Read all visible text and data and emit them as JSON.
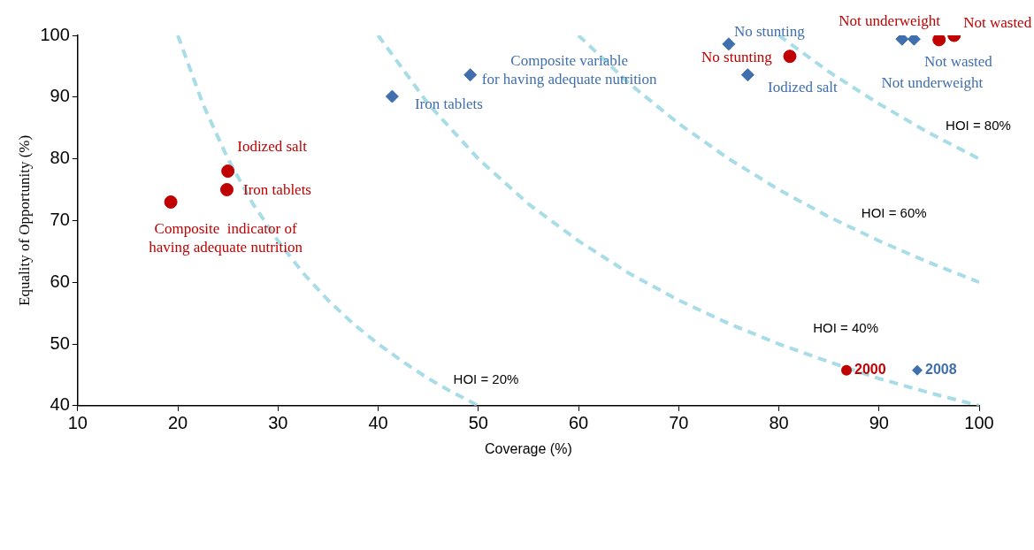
{
  "chart_data": {
    "type": "scatter",
    "xlabel": "Coverage (%)",
    "ylabel": "Equality of Opportunity (%)",
    "xlim": [
      10,
      100
    ],
    "xticks": [
      10,
      20,
      30,
      40,
      50,
      60,
      70,
      80,
      90,
      100
    ],
    "ylim": [
      40,
      100
    ],
    "yticks": [
      40,
      50,
      60,
      70,
      80,
      90,
      100
    ],
    "grid": false,
    "legend": "bottom right",
    "series": [
      {
        "name": "2000",
        "color": "#c00000",
        "marker": "circle",
        "x": [
          19.3,
          25.0,
          24.9,
          81.1,
          96.0,
          97.5
        ],
        "values": [
          73.0,
          78.0,
          75.0,
          96.6,
          99.3,
          100.0
        ],
        "value_labels": [
          "Composite  indicator of\nhaving adequate nutrition",
          "Iodized salt",
          "Iron tablets",
          "No stunting",
          "Not underweight",
          "Not wasted"
        ]
      },
      {
        "name": "2008",
        "color": "#3f6fae",
        "marker": "diamond",
        "x": [
          41.4,
          49.2,
          75.0,
          76.9,
          92.3,
          93.5
        ],
        "values": [
          90.1,
          93.6,
          98.6,
          93.6,
          99.4,
          99.4
        ],
        "value_labels": [
          "Iron tablets",
          "Composite variable\nfor having adequate nutrition",
          "No stunting",
          "Iodized salt",
          "Not underweight",
          "Not wasted"
        ]
      },
      {
        "type": "line",
        "name": "HOI = 20%",
        "color": "#a8dce6",
        "line_style": "dashed",
        "marker": "none",
        "x": [
          20,
          22.5,
          25,
          27.5,
          30,
          32.5,
          35,
          37.5,
          40,
          42.5,
          45,
          47.5,
          50
        ],
        "values": [
          100,
          88.9,
          80,
          72.7,
          66.7,
          61.5,
          57.1,
          53.3,
          50,
          47.1,
          44.4,
          42.1,
          40
        ]
      },
      {
        "type": "line",
        "name": "HOI = 40%",
        "color": "#a8dce6",
        "line_style": "dashed",
        "marker": "none",
        "x": [
          40,
          45,
          50,
          55,
          60,
          65,
          70,
          75,
          80,
          85,
          90,
          95,
          100
        ],
        "values": [
          100,
          88.9,
          80,
          72.7,
          66.7,
          61.5,
          57.1,
          53.3,
          50,
          47.1,
          44.4,
          42.1,
          40
        ]
      },
      {
        "type": "line",
        "name": "HOI = 60%",
        "color": "#a8dce6",
        "line_style": "dashed",
        "marker": "none",
        "x": [
          60,
          65,
          70,
          75,
          80,
          85,
          90,
          95,
          100
        ],
        "values": [
          100,
          92.3,
          85.7,
          80,
          75,
          70.6,
          66.7,
          63.2,
          60
        ]
      },
      {
        "type": "line",
        "name": "HOI = 80%",
        "color": "#a8dce6",
        "line_style": "dashed",
        "marker": "none",
        "x": [
          80,
          85,
          90,
          95,
          100
        ],
        "values": [
          100,
          94.1,
          88.9,
          84.2,
          80
        ]
      }
    ]
  }
}
